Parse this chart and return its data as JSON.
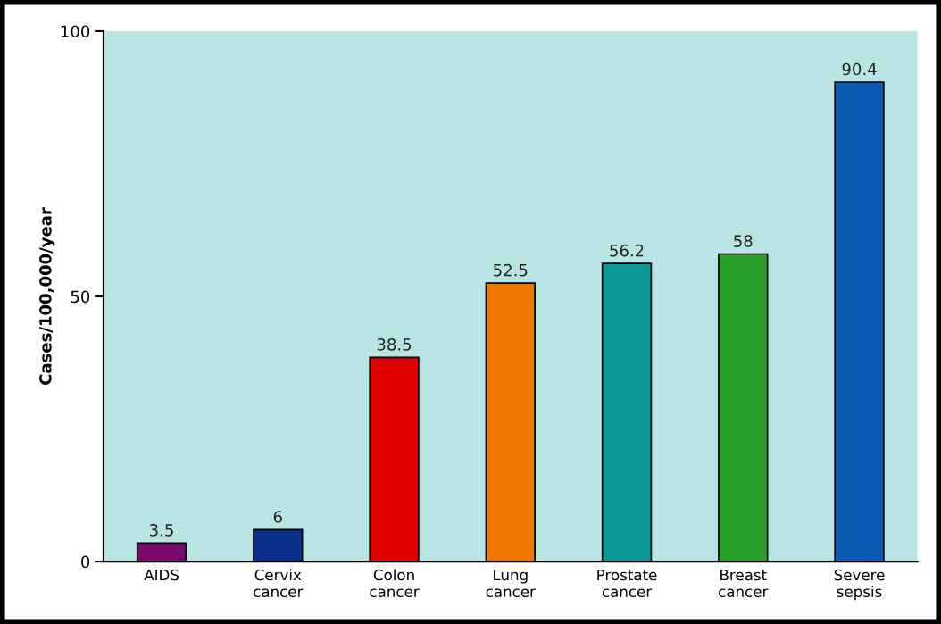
{
  "chart_data": {
    "type": "bar",
    "ylabel": "Cases/100,000/year",
    "categories": [
      "AIDS",
      "Cervix\ncancer",
      "Colon\ncancer",
      "Lung\ncancer",
      "Prostate\ncancer",
      "Breast\ncancer",
      "Severe\nsepsis"
    ],
    "values": [
      3.5,
      6,
      38.5,
      52.5,
      56.2,
      58,
      90.4
    ],
    "colors": [
      "#7b0a6e",
      "#0a2f8c",
      "#e00000",
      "#f07800",
      "#0a9a9a",
      "#2aa02a",
      "#0a5ab4"
    ],
    "ylim": [
      0,
      100
    ],
    "yticks": [
      0,
      50,
      100
    ],
    "data_labels": true,
    "grid": false
  }
}
